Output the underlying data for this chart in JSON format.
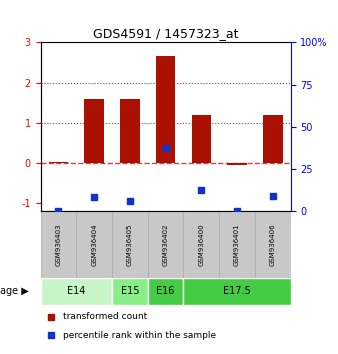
{
  "title": "GDS4591 / 1457323_at",
  "samples": [
    "GSM936403",
    "GSM936404",
    "GSM936405",
    "GSM936402",
    "GSM936400",
    "GSM936401",
    "GSM936406"
  ],
  "red_values": [
    0.02,
    1.58,
    1.58,
    2.65,
    1.2,
    -0.05,
    1.2
  ],
  "blue_pct": [
    0.0,
    8.0,
    5.5,
    37.0,
    12.0,
    0.0,
    8.5
  ],
  "age_groups": [
    {
      "label": "E14",
      "start": 0,
      "end": 2,
      "color": "#c8f5c8"
    },
    {
      "label": "E15",
      "start": 2,
      "end": 3,
      "color": "#88ee88"
    },
    {
      "label": "E16",
      "start": 3,
      "end": 4,
      "color": "#44cc44"
    },
    {
      "label": "E17.5",
      "start": 4,
      "end": 7,
      "color": "#44cc44"
    }
  ],
  "ylim_left": [
    -1.2,
    3.0
  ],
  "ylim_right": [
    0,
    100
  ],
  "left_ticks": [
    -1,
    0,
    1,
    2,
    3
  ],
  "right_ticks": [
    0,
    25,
    50,
    75,
    100
  ],
  "red_color": "#aa1100",
  "blue_color": "#1133cc",
  "dashed_line_color": "#cc4444",
  "dotted_line_color": "#555555",
  "bar_width": 0.55,
  "sample_box_color": "#c8c8c8",
  "sample_box_edge": "#aaaaaa"
}
